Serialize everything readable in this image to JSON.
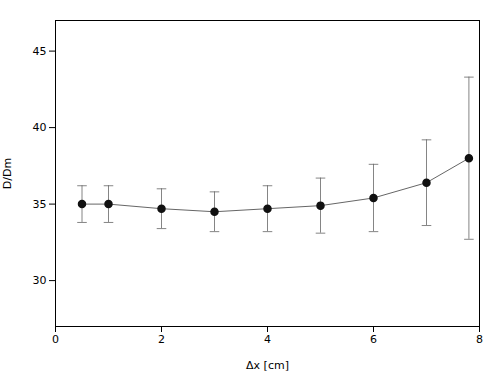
{
  "chart_data": {
    "type": "line",
    "x": [
      0.5,
      1.0,
      2.0,
      3.0,
      4.0,
      5.0,
      6.0,
      7.0,
      7.8
    ],
    "values": [
      35.0,
      35.0,
      34.7,
      34.5,
      34.7,
      34.9,
      35.4,
      36.4,
      38.0
    ],
    "error_upper": [
      1.2,
      1.2,
      1.3,
      1.3,
      1.5,
      1.8,
      2.2,
      2.8,
      5.3
    ],
    "error_lower": [
      1.2,
      1.2,
      1.3,
      1.3,
      1.5,
      1.8,
      2.2,
      2.8,
      5.3
    ],
    "xlabel": "Δx [cm]",
    "ylabel": "D/Dm",
    "xlim": [
      0,
      8
    ],
    "ylim": [
      27,
      47
    ],
    "xticks": [
      0,
      2,
      4,
      6,
      8
    ],
    "yticks": [
      30,
      35,
      40,
      45
    ],
    "color": "#666666",
    "marker": "circle",
    "grid": false
  }
}
